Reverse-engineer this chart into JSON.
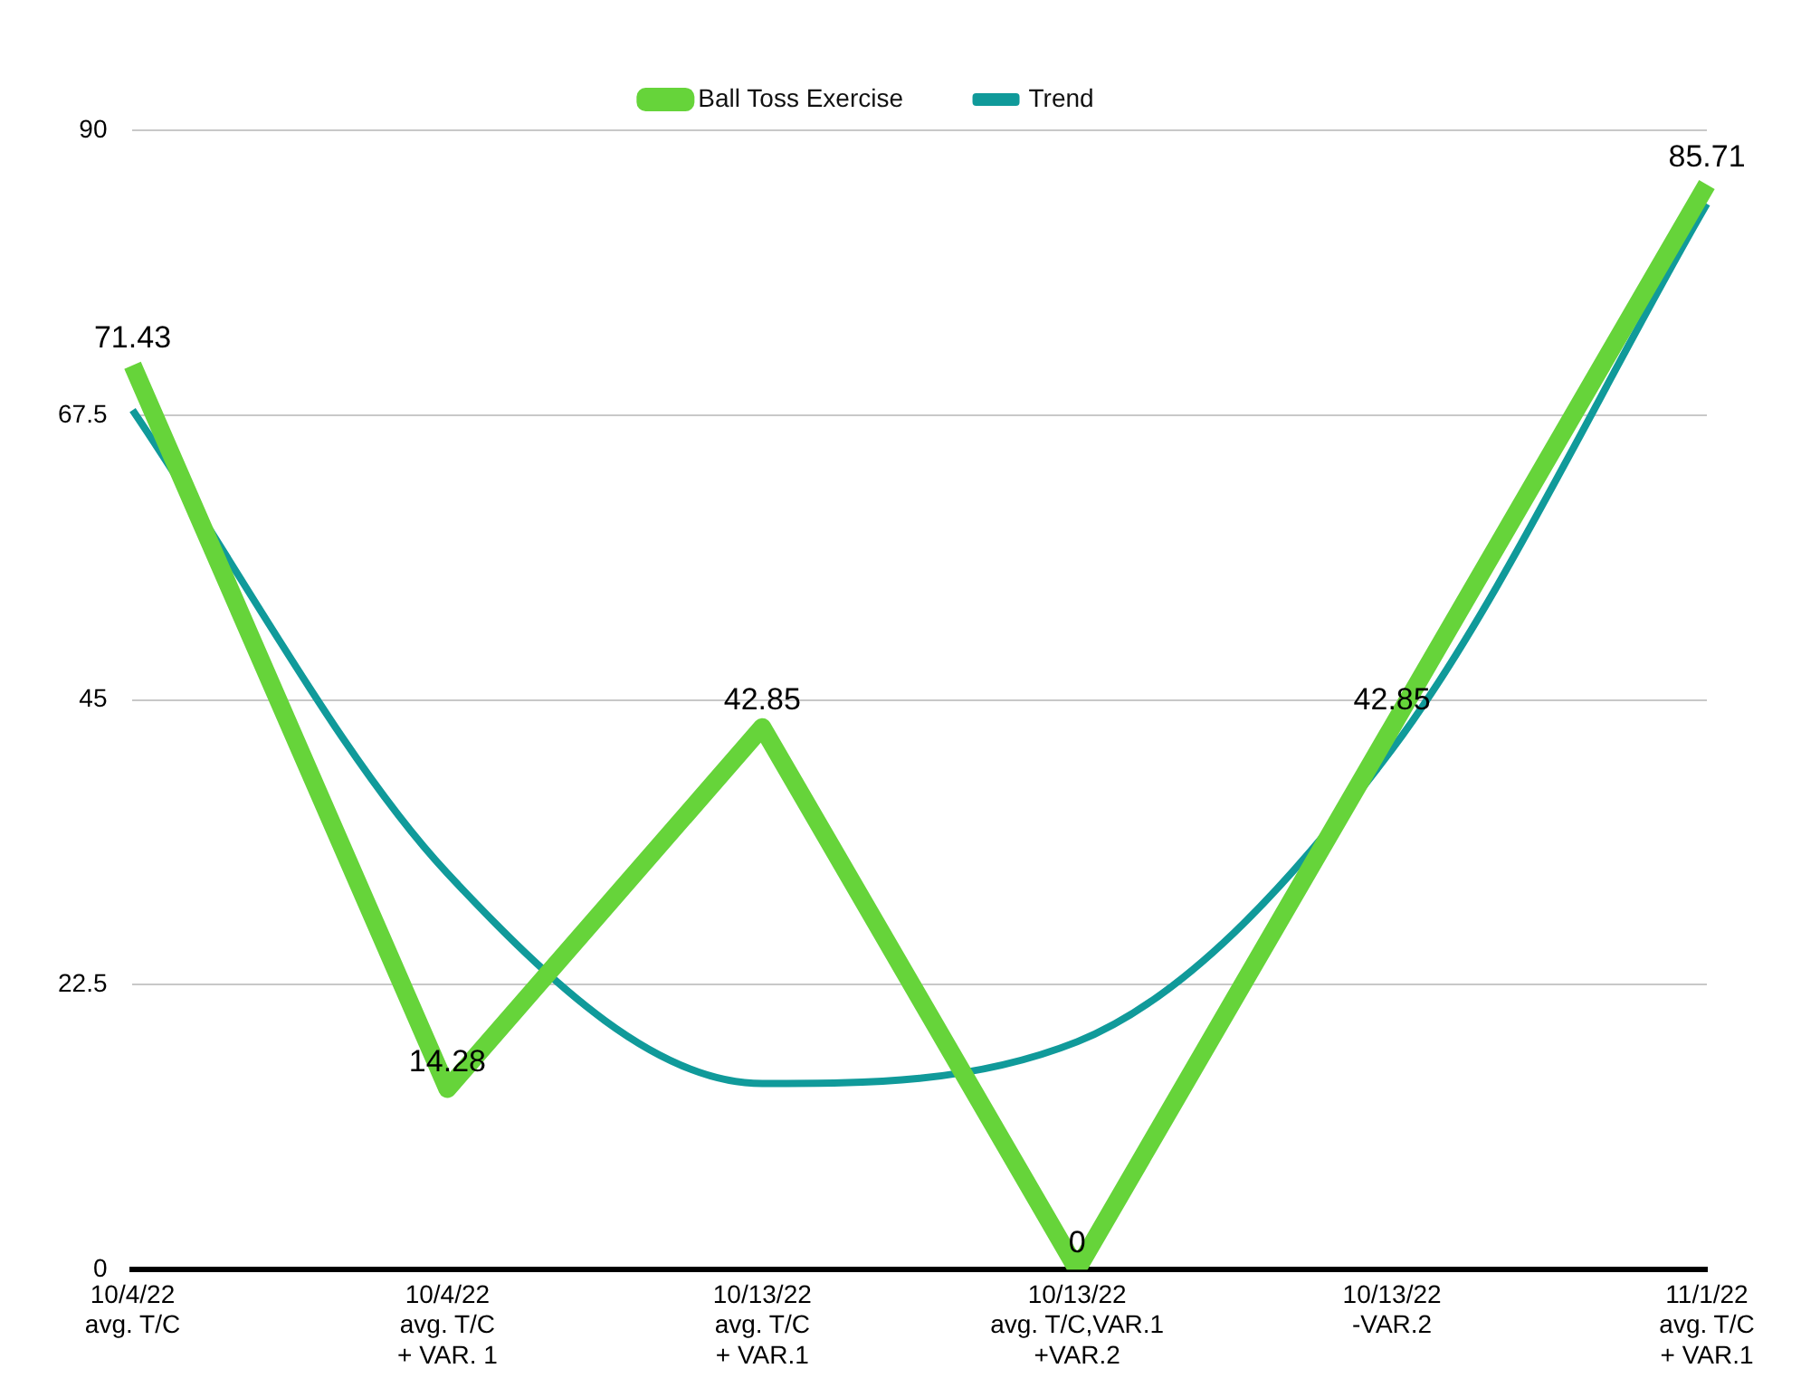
{
  "chart_data": {
    "type": "line",
    "categories": [
      "10/4/22\navg. T/C",
      "10/4/22\navg. T/C\n+ VAR. 1",
      "10/13/22\navg. T/C\n+ VAR.1",
      "10/13/22\navg. T/C,VAR.1\n+VAR.2",
      "10/13/22\n-VAR.2",
      "11/1/22\navg. T/C\n+ VAR.1"
    ],
    "series": [
      {
        "name": "Trend",
        "color": "#109a9a",
        "values": [
          67.9,
          31.3,
          14.7,
          18.0,
          41.1,
          84.2
        ]
      },
      {
        "name": "Ball Toss Exercise",
        "color": "#66d43a",
        "values": [
          71.43,
          14.28,
          42.85,
          0,
          42.85,
          85.71
        ],
        "value_labels": [
          "71.43",
          "14.28",
          "42.85",
          "0",
          "42.85",
          "85.71"
        ]
      }
    ],
    "ylim": [
      0,
      90
    ],
    "yticks": [
      0,
      22.5,
      45,
      67.5,
      90
    ],
    "grid": "y",
    "legend": "top",
    "marker": "none"
  }
}
